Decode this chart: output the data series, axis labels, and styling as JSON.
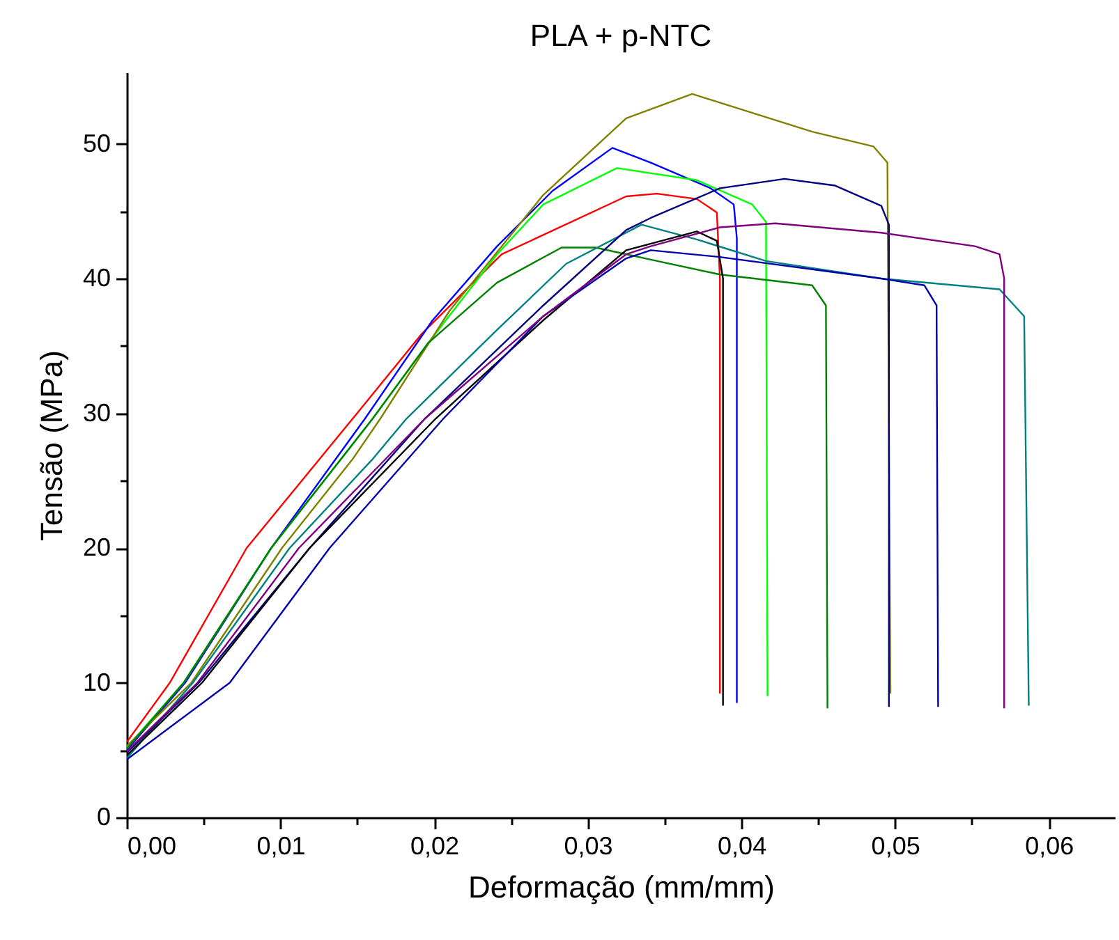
{
  "chart_data": {
    "type": "line",
    "title": "PLA + p-NTC",
    "xlabel": "Deformação (mm/mm)",
    "ylabel": "Tensão (MPa)",
    "xlim": [
      0,
      0.0643
    ],
    "ylim": [
      0,
      55.3
    ],
    "xticks": [
      {
        "value": 0,
        "label": "0,00"
      },
      {
        "value": 0.005,
        "label": null
      },
      {
        "value": 0.01,
        "label": "0,01"
      },
      {
        "value": 0.015,
        "label": null
      },
      {
        "value": 0.02,
        "label": "0,02"
      },
      {
        "value": 0.025,
        "label": null
      },
      {
        "value": 0.03,
        "label": "0,03"
      },
      {
        "value": 0.035,
        "label": null
      },
      {
        "value": 0.04,
        "label": "0,04"
      },
      {
        "value": 0.045,
        "label": null
      },
      {
        "value": 0.05,
        "label": "0,05"
      },
      {
        "value": 0.055,
        "label": null
      },
      {
        "value": 0.06,
        "label": "0,06"
      }
    ],
    "yticks": [
      0,
      {
        "value": 5,
        "label": null
      },
      10,
      {
        "value": 15,
        "label": null
      },
      20,
      {
        "value": 25,
        "label": null
      },
      30,
      {
        "value": 35,
        "label": null
      },
      40,
      {
        "value": 45,
        "label": null
      },
      50
    ],
    "legend": false,
    "marker": "none",
    "line_style": "solid",
    "series": [
      {
        "color": "#ff0000",
        "x": [
          0,
          0.0028,
          0.0078,
          0.0147,
          0.0192,
          0.0244,
          0.0325,
          0.0345,
          0.0371,
          0.0384,
          0.0386,
          0.0386
        ],
        "values": [
          5.6,
          10,
          20,
          29.6,
          35.9,
          41.8,
          46.1,
          46.3,
          45.9,
          44.9,
          40,
          9.2
        ]
      },
      {
        "color": "#0000ff",
        "x": [
          0,
          0.0038,
          0.0094,
          0.0155,
          0.0199,
          0.0241,
          0.0277,
          0.0316,
          0.0341,
          0.038,
          0.0395,
          0.0397,
          0.0397
        ],
        "values": [
          5.0,
          10,
          20,
          29.6,
          36.9,
          42.4,
          46.5,
          49.7,
          48.6,
          46.7,
          45.5,
          43,
          8.5
        ]
      },
      {
        "color": "#00ff00",
        "x": [
          0,
          0.0037,
          0.0094,
          0.016,
          0.0196,
          0.0241,
          0.0271,
          0.0319,
          0.0371,
          0.0407,
          0.0416,
          0.0417
        ],
        "values": [
          5.2,
          10,
          20,
          29.6,
          35.2,
          41.8,
          45.5,
          48.2,
          47.3,
          45.5,
          44.2,
          9.0
        ]
      },
      {
        "color": "#808000",
        "x": [
          0,
          0.0042,
          0.0101,
          0.0147,
          0.0165,
          0.021,
          0.0271,
          0.0325,
          0.0368,
          0.0446,
          0.0486,
          0.0495,
          0.0497
        ],
        "values": [
          5.3,
          10,
          20,
          26.6,
          29.6,
          37.6,
          46.2,
          51.9,
          53.7,
          50.9,
          49.8,
          48.6,
          9.2
        ]
      },
      {
        "color": "#008000",
        "x": [
          0,
          0.0037,
          0.0094,
          0.016,
          0.0196,
          0.0241,
          0.0283,
          0.0305,
          0.0341,
          0.0386,
          0.0446,
          0.0455,
          0.0456
        ],
        "values": [
          5.1,
          10,
          20,
          29.6,
          35.2,
          39.7,
          42.3,
          42.3,
          41.4,
          40.3,
          39.5,
          38.0,
          8.1
        ]
      },
      {
        "color": "#008080",
        "x": [
          0,
          0.0043,
          0.0106,
          0.016,
          0.0182,
          0.0241,
          0.0286,
          0.0335,
          0.0371,
          0.0416,
          0.0491,
          0.0568,
          0.0584,
          0.0587
        ],
        "values": [
          4.4,
          10,
          20,
          26.6,
          29.6,
          36.2,
          41.1,
          44.0,
          42.9,
          41.3,
          40.0,
          39.2,
          37.2,
          8.3
        ]
      },
      {
        "color": "#000080",
        "x": [
          0,
          0.0047,
          0.0119,
          0.0194,
          0.0271,
          0.0325,
          0.0341,
          0.0386,
          0.0428,
          0.0461,
          0.0491,
          0.0496,
          0.0496
        ],
        "values": [
          4.8,
          10,
          20,
          29.6,
          38.0,
          43.6,
          44.5,
          46.7,
          47.4,
          46.9,
          45.4,
          44,
          8.2
        ]
      },
      {
        "color": "#000000",
        "x": [
          0,
          0.0049,
          0.0119,
          0.0201,
          0.0271,
          0.0325,
          0.0371,
          0.0384,
          0.0388,
          0.0388
        ],
        "values": [
          4.6,
          10,
          20,
          29.6,
          36.9,
          42.1,
          43.5,
          42.8,
          40,
          8.3
        ]
      },
      {
        "color": "#0000aa",
        "x": [
          0,
          0.0067,
          0.0132,
          0.0206,
          0.0271,
          0.0325,
          0.0341,
          0.0386,
          0.0491,
          0.0519,
          0.0527,
          0.0528
        ],
        "values": [
          4.3,
          10,
          20,
          29.6,
          37.2,
          41.5,
          42.1,
          41.6,
          40.0,
          39.5,
          38.0,
          8.2
        ]
      },
      {
        "color": "#800080",
        "x": [
          0,
          0.0046,
          0.0112,
          0.0194,
          0.0271,
          0.0325,
          0.0341,
          0.0386,
          0.0422,
          0.0491,
          0.0552,
          0.0568,
          0.0571,
          0.0571
        ],
        "values": [
          4.9,
          10,
          20,
          29.6,
          37.2,
          41.8,
          42.4,
          43.8,
          44.1,
          43.4,
          42.4,
          41.8,
          40,
          8.1
        ]
      }
    ]
  }
}
